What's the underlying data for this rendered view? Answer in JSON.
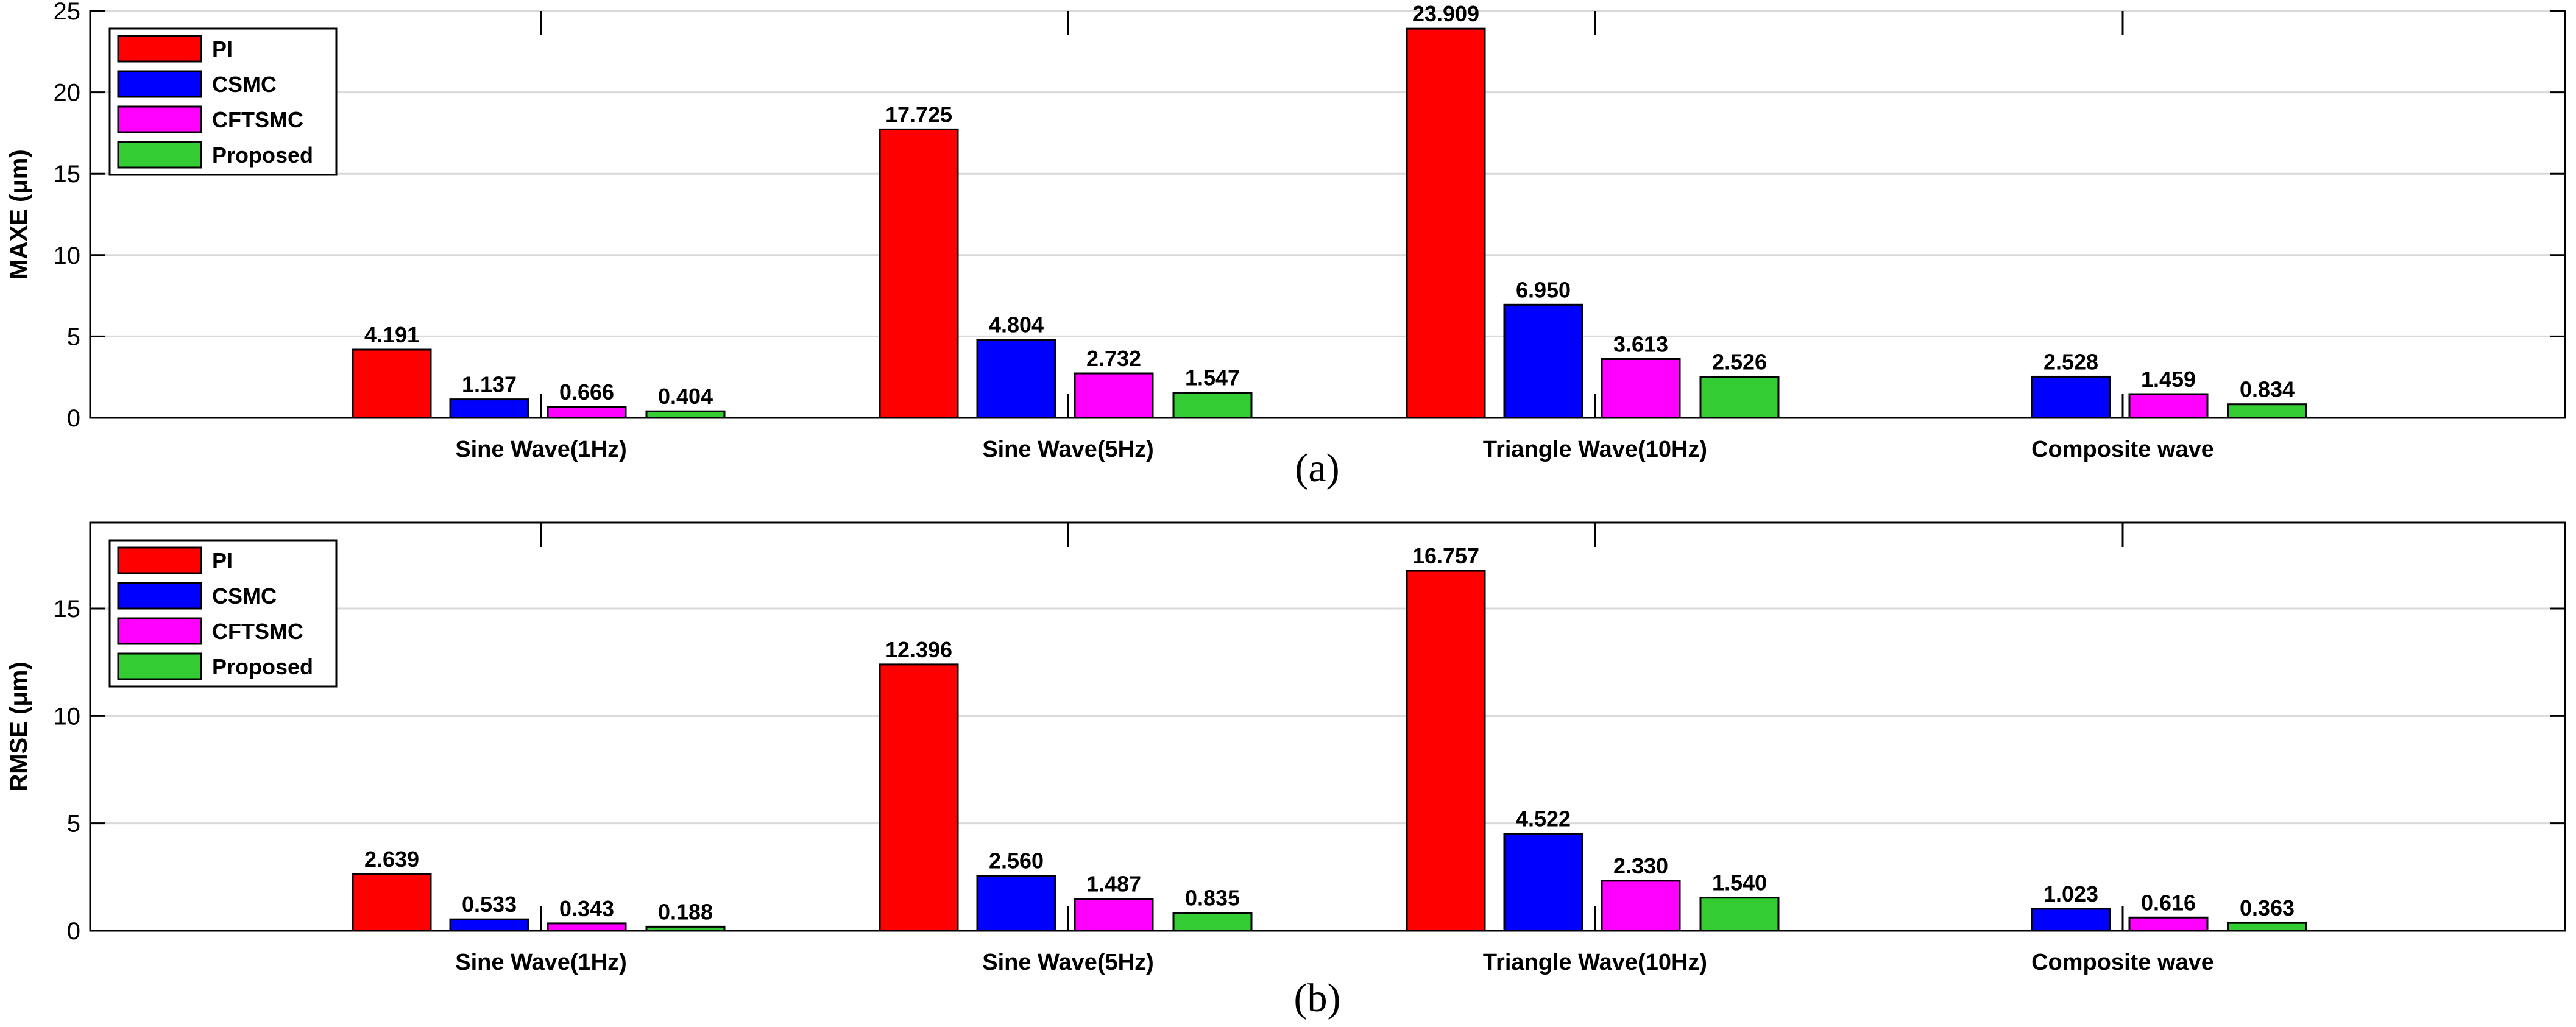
{
  "chart_data": [
    {
      "type": "bar",
      "title": "",
      "caption": "(a)",
      "xlabel": "",
      "ylabel": "MAXE (μm)",
      "ylim": [
        0,
        25
      ],
      "yticks": [
        "0",
        "5",
        "10",
        "15",
        "20",
        "25"
      ],
      "grid": true,
      "legend_position": "top-left",
      "categories": [
        "Sine Wave(1Hz)",
        "Sine Wave(5Hz)",
        "Triangle Wave(10Hz)",
        "Composite wave"
      ],
      "series": [
        {
          "name": "PI",
          "color": "#ff0000",
          "values": [
            4.191,
            17.725,
            23.909,
            null
          ],
          "labels": [
            "4.191",
            "17.725",
            "23.909",
            ""
          ]
        },
        {
          "name": "CSMC",
          "color": "#0000ff",
          "values": [
            1.137,
            4.804,
            6.95,
            2.528
          ],
          "labels": [
            "1.137",
            "4.804",
            "6.950",
            "2.528"
          ]
        },
        {
          "name": "CFTSMC",
          "color": "#ff00ff",
          "values": [
            0.666,
            2.732,
            3.613,
            1.459
          ],
          "labels": [
            "0.666",
            "2.732",
            "3.613",
            "1.459"
          ]
        },
        {
          "name": "Proposed",
          "color": "#33cc33",
          "values": [
            0.404,
            1.547,
            2.526,
            0.834
          ],
          "labels": [
            "0.404",
            "1.547",
            "2.526",
            "0.834"
          ]
        }
      ]
    },
    {
      "type": "bar",
      "title": "",
      "caption": "(b)",
      "xlabel": "",
      "ylabel": "RMSE (μm)",
      "ylim": [
        0,
        19
      ],
      "yticks": [
        "0",
        "5",
        "10",
        "15"
      ],
      "grid": true,
      "legend_position": "top-left",
      "categories": [
        "Sine Wave(1Hz)",
        "Sine Wave(5Hz)",
        "Triangle Wave(10Hz)",
        "Composite wave"
      ],
      "series": [
        {
          "name": "PI",
          "color": "#ff0000",
          "values": [
            2.639,
            12.396,
            16.757,
            null
          ],
          "labels": [
            "2.639",
            "12.396",
            "16.757",
            ""
          ]
        },
        {
          "name": "CSMC",
          "color": "#0000ff",
          "values": [
            0.533,
            2.56,
            4.522,
            1.023
          ],
          "labels": [
            "0.533",
            "2.560",
            "4.522",
            "1.023"
          ]
        },
        {
          "name": "CFTSMC",
          "color": "#ff00ff",
          "values": [
            0.343,
            1.487,
            2.33,
            0.616
          ],
          "labels": [
            "0.343",
            "1.487",
            "2.330",
            "0.616"
          ]
        },
        {
          "name": "Proposed",
          "color": "#33cc33",
          "values": [
            0.188,
            0.835,
            1.54,
            0.363
          ],
          "labels": [
            "0.188",
            "0.835",
            "1.540",
            "0.363"
          ]
        }
      ]
    }
  ]
}
